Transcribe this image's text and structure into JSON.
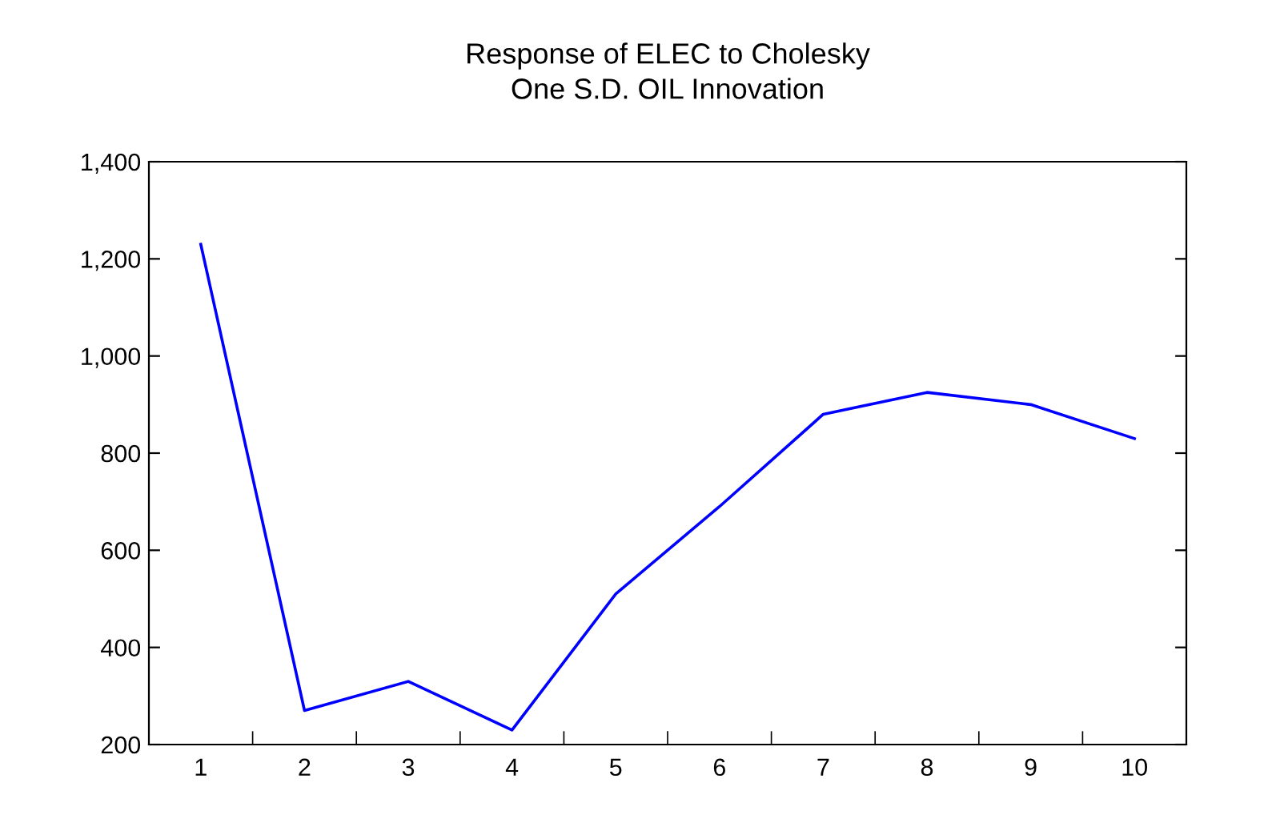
{
  "chart_data": {
    "type": "line",
    "title": "Response of ELEC to Cholesky",
    "subtitle": "One S.D. OIL Innovation",
    "categories": [
      "1",
      "2",
      "3",
      "4",
      "5",
      "6",
      "7",
      "8",
      "9",
      "10"
    ],
    "series": [
      {
        "color": "#0000ff",
        "values": [
          1230,
          270,
          330,
          230,
          510,
          690,
          880,
          925,
          900,
          830
        ]
      }
    ],
    "ylim": [
      200,
      1400
    ],
    "yticks": [
      200,
      400,
      600,
      800,
      {
        "value": 1000,
        "label": "1,000"
      },
      {
        "value": 1200,
        "label": "1,200"
      },
      {
        "value": 1400,
        "label": "1,400"
      }
    ],
    "grid": false,
    "legend": false,
    "marker": "none",
    "line_style": "solid"
  }
}
